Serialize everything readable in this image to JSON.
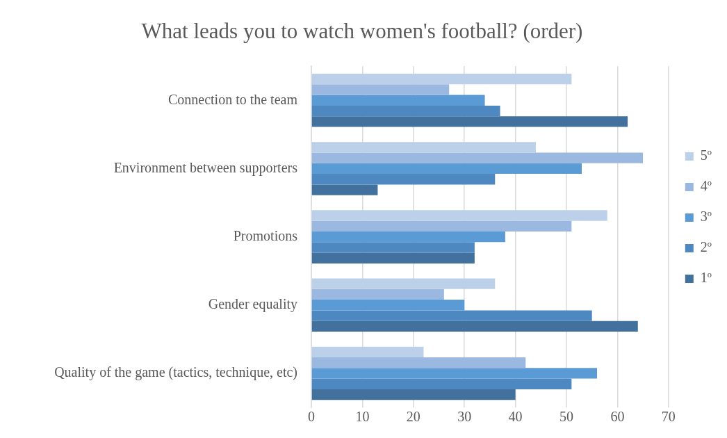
{
  "chart_data": {
    "type": "bar",
    "orientation": "horizontal",
    "title": "What leads you to watch women's football? (order)",
    "categories": [
      "Connection to the team",
      "Environment between supporters",
      "Promotions",
      "Gender equality",
      "Quality of the game (tactics, technique, etc)"
    ],
    "series": [
      {
        "name": "5º",
        "color": "#bdd0ea",
        "values": [
          51,
          44,
          58,
          36,
          22
        ]
      },
      {
        "name": "4º",
        "color": "#9bb9e0",
        "values": [
          27,
          65,
          51,
          26,
          42
        ]
      },
      {
        "name": "3º",
        "color": "#5b9bd5",
        "values": [
          34,
          53,
          38,
          30,
          56
        ]
      },
      {
        "name": "2º",
        "color": "#4e88c0",
        "values": [
          37,
          36,
          32,
          55,
          51
        ]
      },
      {
        "name": "1º",
        "color": "#41719c",
        "values": [
          62,
          13,
          32,
          64,
          40
        ]
      }
    ],
    "xlim": [
      0,
      70
    ],
    "xticks": [
      0,
      10,
      20,
      30,
      40,
      50,
      60,
      70
    ],
    "grid": "x",
    "legend": "right"
  }
}
